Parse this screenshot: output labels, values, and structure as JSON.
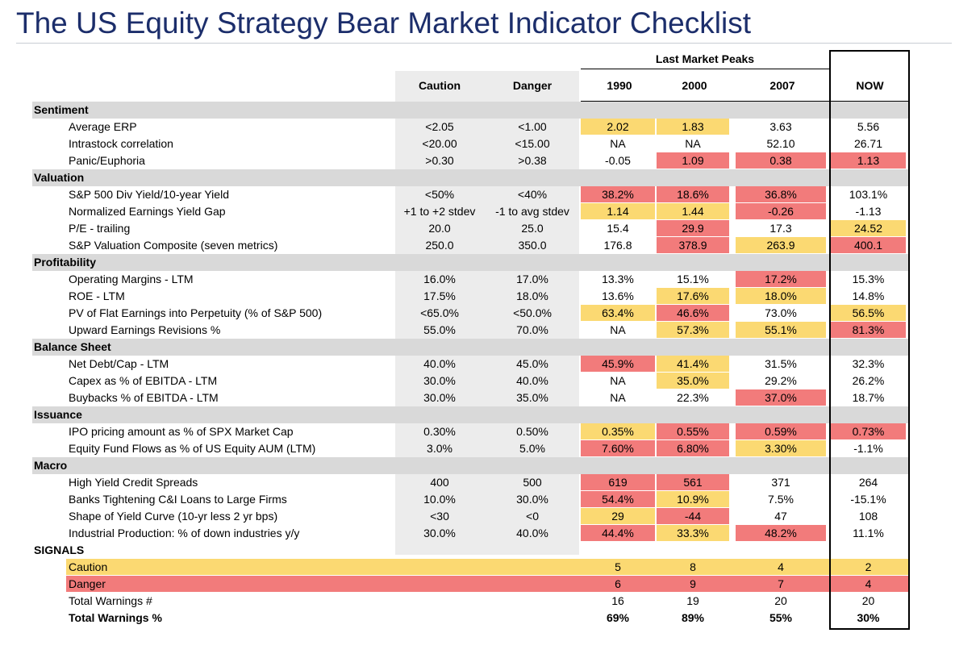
{
  "title": "The US Equity Strategy Bear Market Indicator Checklist",
  "colors": {
    "caution": "#fbd972",
    "danger": "#f27b7b",
    "section_bg": "#d9d9d9",
    "threshold_bg": "#ececec",
    "title": "#1c2e6b"
  },
  "header": {
    "group_label": "Last Market Peaks",
    "columns": [
      "Caution",
      "Danger",
      "1990",
      "2000",
      "2007",
      "NOW"
    ]
  },
  "sections": [
    {
      "name": "Sentiment",
      "rows": [
        {
          "label": "Average ERP",
          "caution": "<2.05",
          "danger": "<1.00",
          "values": [
            "2.02",
            "1.83",
            "3.63",
            "5.56"
          ],
          "flags": [
            "c",
            "c",
            "",
            ""
          ]
        },
        {
          "label": "Intrastock correlation",
          "caution": "<20.00",
          "danger": "<15.00",
          "values": [
            "NA",
            "NA",
            "52.10",
            "26.71"
          ],
          "flags": [
            "",
            "",
            "",
            ""
          ]
        },
        {
          "label": "Panic/Euphoria",
          "caution": ">0.30",
          "danger": ">0.38",
          "values": [
            "-0.05",
            "1.09",
            "0.38",
            "1.13"
          ],
          "flags": [
            "",
            "d",
            "d",
            "d"
          ]
        }
      ]
    },
    {
      "name": "Valuation",
      "rows": [
        {
          "label": "S&P 500 Div Yield/10-year Yield",
          "caution": "<50%",
          "danger": "<40%",
          "values": [
            "38.2%",
            "18.6%",
            "36.8%",
            "103.1%"
          ],
          "flags": [
            "d",
            "d",
            "d",
            ""
          ]
        },
        {
          "label": "Normalized Earnings Yield Gap",
          "caution": "+1 to +2 stdev",
          "danger": "-1 to avg stdev",
          "values": [
            "1.14",
            "1.44",
            "-0.26",
            "-1.13"
          ],
          "flags": [
            "c",
            "c",
            "d",
            ""
          ]
        },
        {
          "label": "P/E - trailing",
          "caution": "20.0",
          "danger": "25.0",
          "values": [
            "15.4",
            "29.9",
            "17.3",
            "24.52"
          ],
          "flags": [
            "",
            "d",
            "",
            "c"
          ]
        },
        {
          "label": "S&P Valuation Composite (seven metrics)",
          "caution": "250.0",
          "danger": "350.0",
          "values": [
            "176.8",
            "378.9",
            "263.9",
            "400.1"
          ],
          "flags": [
            "",
            "d",
            "c",
            "d"
          ]
        }
      ]
    },
    {
      "name": "Profitability",
      "rows": [
        {
          "label": "Operating Margins - LTM",
          "caution": "16.0%",
          "danger": "17.0%",
          "values": [
            "13.3%",
            "15.1%",
            "17.2%",
            "15.3%"
          ],
          "flags": [
            "",
            "",
            "d",
            ""
          ]
        },
        {
          "label": "ROE - LTM",
          "caution": "17.5%",
          "danger": "18.0%",
          "values": [
            "13.6%",
            "17.6%",
            "18.0%",
            "14.8%"
          ],
          "flags": [
            "",
            "c",
            "c",
            ""
          ]
        },
        {
          "label": "PV of Flat Earnings into Perpetuity (% of S&P 500)",
          "caution": "<65.0%",
          "danger": "<50.0%",
          "values": [
            "63.4%",
            "46.6%",
            "73.0%",
            "56.5%"
          ],
          "flags": [
            "c",
            "d",
            "",
            "c"
          ]
        },
        {
          "label": "Upward Earnings Revisions %",
          "caution": "55.0%",
          "danger": "70.0%",
          "values": [
            "NA",
            "57.3%",
            "55.1%",
            "81.3%"
          ],
          "flags": [
            "",
            "c",
            "c",
            "d"
          ]
        }
      ]
    },
    {
      "name": "Balance Sheet",
      "rows": [
        {
          "label": "Net Debt/Cap - LTM",
          "caution": "40.0%",
          "danger": "45.0%",
          "values": [
            "45.9%",
            "41.4%",
            "31.5%",
            "32.3%"
          ],
          "flags": [
            "d",
            "c",
            "",
            ""
          ]
        },
        {
          "label": "Capex as % of EBITDA - LTM",
          "caution": "30.0%",
          "danger": "40.0%",
          "values": [
            "NA",
            "35.0%",
            "29.2%",
            "26.2%"
          ],
          "flags": [
            "",
            "c",
            "",
            ""
          ]
        },
        {
          "label": "Buybacks % of EBITDA - LTM",
          "caution": "30.0%",
          "danger": "35.0%",
          "values": [
            "NA",
            "22.3%",
            "37.0%",
            "18.7%"
          ],
          "flags": [
            "",
            "",
            "d",
            ""
          ]
        }
      ]
    },
    {
      "name": "Issuance",
      "rows": [
        {
          "label": "IPO pricing amount as % of SPX Market Cap",
          "caution": "0.30%",
          "danger": "0.50%",
          "values": [
            "0.35%",
            "0.55%",
            "0.59%",
            "0.73%"
          ],
          "flags": [
            "c",
            "d",
            "d",
            "d"
          ]
        },
        {
          "label": "Equity Fund Flows as % of US Equity AUM (LTM)",
          "caution": "3.0%",
          "danger": "5.0%",
          "values": [
            "7.60%",
            "6.80%",
            "3.30%",
            "-1.1%"
          ],
          "flags": [
            "d",
            "d",
            "c",
            ""
          ]
        }
      ]
    },
    {
      "name": "Macro",
      "rows": [
        {
          "label": "High Yield Credit Spreads",
          "caution": "400",
          "danger": "500",
          "values": [
            "619",
            "561",
            "371",
            "264"
          ],
          "flags": [
            "d",
            "d",
            "",
            ""
          ]
        },
        {
          "label": "Banks Tightening C&I Loans to Large Firms",
          "caution": "10.0%",
          "danger": "30.0%",
          "values": [
            "54.4%",
            "10.9%",
            "7.5%",
            "-15.1%"
          ],
          "flags": [
            "d",
            "c",
            "",
            ""
          ]
        },
        {
          "label": "Shape of Yield Curve (10-yr less 2 yr bps)",
          "caution": "<30",
          "danger": "<0",
          "values": [
            "29",
            "-44",
            "47",
            "108"
          ],
          "flags": [
            "c",
            "d",
            "",
            ""
          ]
        },
        {
          "label": "Industrial Production: % of down industries y/y",
          "caution": "30.0%",
          "danger": "40.0%",
          "values": [
            "44.4%",
            "33.3%",
            "48.2%",
            "11.1%"
          ],
          "flags": [
            "d",
            "c",
            "d",
            ""
          ]
        }
      ]
    }
  ],
  "signals": {
    "name": "SIGNALS",
    "rows": [
      {
        "label": "Caution",
        "values": [
          "5",
          "8",
          "4",
          "2"
        ],
        "row_flag": "c",
        "bold": false
      },
      {
        "label": "Danger",
        "values": [
          "6",
          "9",
          "7",
          "4"
        ],
        "row_flag": "d",
        "bold": false
      },
      {
        "label": "Total Warnings #",
        "values": [
          "16",
          "19",
          "20",
          "20"
        ],
        "row_flag": "",
        "bold": false
      },
      {
        "label": "Total Warnings %",
        "values": [
          "69%",
          "89%",
          "55%",
          "30%"
        ],
        "row_flag": "",
        "bold": true
      }
    ]
  }
}
